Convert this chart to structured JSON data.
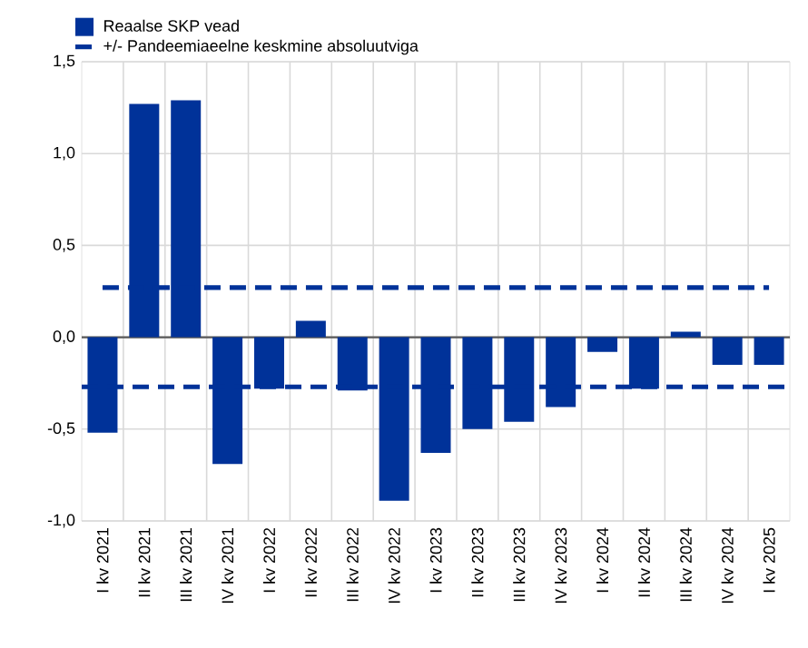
{
  "chart_data": {
    "type": "bar",
    "categories": [
      "I kv 2021",
      "II kv 2021",
      "III kv 2021",
      "IV kv 2021",
      "I kv 2022",
      "II kv 2022",
      "III kv 2022",
      "IV kv 2022",
      "I kv 2023",
      "II kv 2023",
      "III kv 2023",
      "IV kv 2023",
      "I kv 2024",
      "II kv 2024",
      "III kv 2024",
      "IV kv 2024",
      "I kv 2025"
    ],
    "series": [
      {
        "name": "Reaalse SKP vead",
        "color": "#003299",
        "values": [
          -0.52,
          1.27,
          1.29,
          -0.69,
          -0.28,
          0.09,
          -0.29,
          -0.89,
          -0.63,
          -0.5,
          -0.46,
          -0.38,
          -0.08,
          -0.28,
          0.03,
          -0.15,
          -0.15
        ]
      },
      {
        "name": "+/- Pandeemiaeelne keskmine absoluutviga",
        "type": "line",
        "line_style": "dashed",
        "color": "#003299",
        "values": [
          0.27,
          0.27,
          0.27,
          0.27,
          0.27,
          0.27,
          0.27,
          0.27,
          0.27,
          0.27,
          0.27,
          0.27,
          0.27,
          0.27,
          0.27,
          0.27,
          0.27
        ]
      }
    ],
    "ref_lines": [
      {
        "axis": "y",
        "value": -0.27,
        "color": "#003299",
        "line_style": "dashed"
      }
    ],
    "ylim": [
      -1.0,
      1.5
    ],
    "yticks": [
      {
        "value": -1.0,
        "label": "-1,0"
      },
      {
        "value": -0.5,
        "label": "-0,5"
      },
      {
        "value": 0.0,
        "label": "0,0"
      },
      {
        "value": 0.5,
        "label": "0,5"
      },
      {
        "value": 1.0,
        "label": "1,0"
      },
      {
        "value": 1.5,
        "label": "1,5"
      }
    ],
    "grid": true,
    "legend": "top left",
    "marker": "none"
  }
}
